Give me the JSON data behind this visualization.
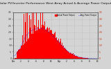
{
  "title": "Solar PV/Inverter Performance West Array",
  "title2": "Actual & Average Power Output",
  "title_fontsize": 3.2,
  "background_color": "#d4d4d4",
  "plot_bg_color": "#d4d4d4",
  "grid_color": "#aaaaaa",
  "bar_color": "#ff0000",
  "avg_line_color": "#0000ff",
  "avg_line_color2": "#ff4400",
  "ylim": [
    0,
    3500
  ],
  "num_bars": 200,
  "legend_actual": "Actual Power Output",
  "legend_avg": "Avg. Power Output"
}
